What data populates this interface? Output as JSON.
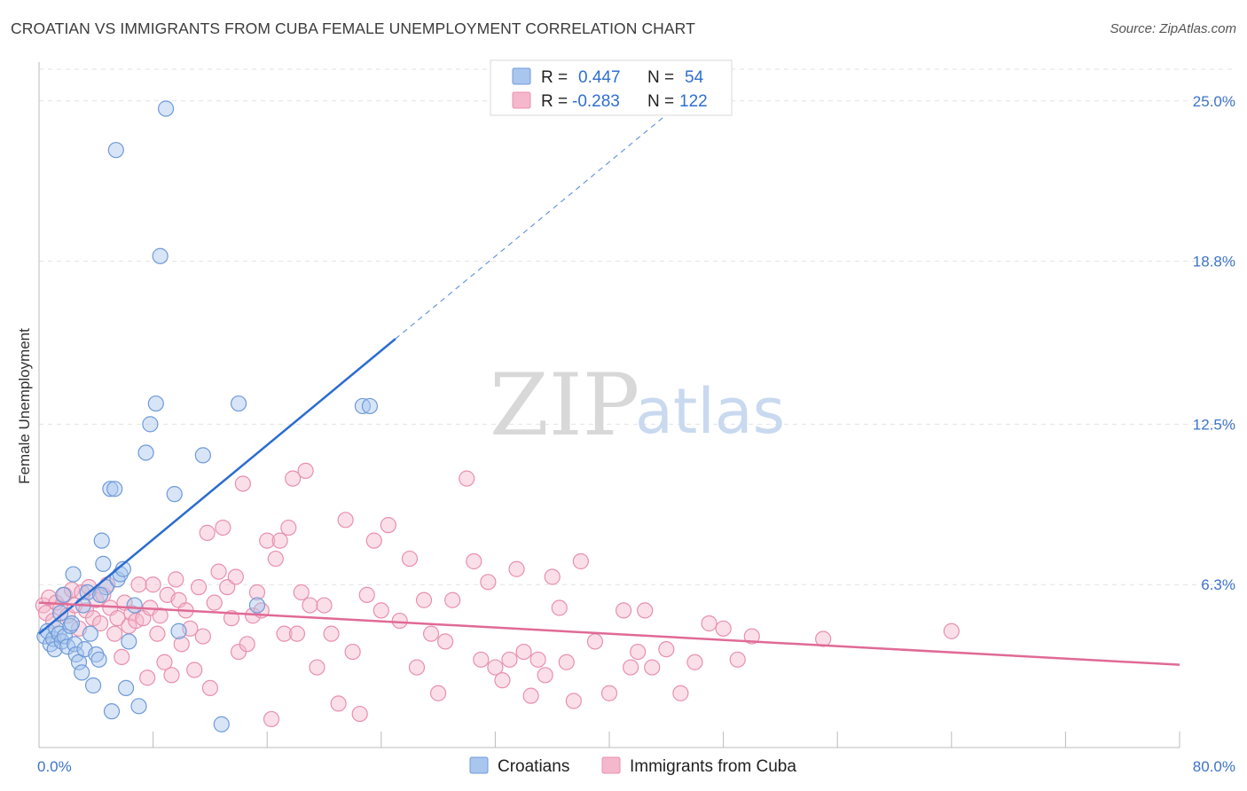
{
  "chart_data": {
    "type": "scatter",
    "title": "CROATIAN VS IMMIGRANTS FROM CUBA FEMALE UNEMPLOYMENT CORRELATION CHART",
    "source": "Source: ZipAtlas.com",
    "ylabel": "Female Unemployment",
    "xlabel": "",
    "xlim": [
      0,
      80
    ],
    "ylim": [
      0,
      26.5
    ],
    "x_ticks": [
      {
        "value": 0,
        "label": "0.0%"
      },
      {
        "value": 80,
        "label": "80.0%"
      }
    ],
    "y_ticks": [
      {
        "value": 6.3,
        "label": "6.3%"
      },
      {
        "value": 12.5,
        "label": "12.5%"
      },
      {
        "value": 18.8,
        "label": "18.8%"
      },
      {
        "value": 25.0,
        "label": "25.0%"
      }
    ],
    "watermark": {
      "part1": "ZIP",
      "part2": "atlas"
    },
    "legend": {
      "r_label": "R =",
      "n_label": "N =",
      "entries": [
        {
          "name": "Croatians",
          "r": "0.447",
          "n": "54"
        },
        {
          "name": "Immigrants from Cuba",
          "r": "-0.283",
          "n": "122"
        }
      ]
    },
    "colors": {
      "blue_fill": "#a9c6ee",
      "blue_stroke": "#6f9ad8",
      "blue_line": "#2a6ccf",
      "pink_fill": "#f5b7cb",
      "pink_stroke": "#e890ad",
      "pink_line": "#e06a95",
      "grid": "#e2e2e2",
      "tick": "#3d73c8"
    },
    "series": [
      {
        "name": "Croatians",
        "trend": {
          "x0": 0,
          "y0": 4.4,
          "x1": 25,
          "y1": 15.8,
          "dash_to_x": 80
        },
        "points": [
          [
            0.4,
            4.3
          ],
          [
            0.6,
            4.5
          ],
          [
            0.8,
            4.0
          ],
          [
            1.0,
            4.2
          ],
          [
            1.1,
            3.8
          ],
          [
            1.2,
            4.6
          ],
          [
            1.4,
            4.4
          ],
          [
            1.5,
            5.2
          ],
          [
            1.6,
            4.1
          ],
          [
            1.8,
            4.3
          ],
          [
            2.0,
            3.9
          ],
          [
            2.2,
            4.7
          ],
          [
            2.4,
            6.7
          ],
          [
            2.5,
            4.0
          ],
          [
            2.6,
            3.6
          ],
          [
            2.8,
            3.3
          ],
          [
            3.0,
            2.9
          ],
          [
            3.2,
            3.8
          ],
          [
            3.4,
            6.0
          ],
          [
            3.6,
            4.4
          ],
          [
            3.8,
            2.4
          ],
          [
            4.0,
            3.6
          ],
          [
            4.2,
            3.4
          ],
          [
            4.4,
            8.0
          ],
          [
            4.5,
            7.1
          ],
          [
            4.7,
            6.2
          ],
          [
            5.0,
            10.0
          ],
          [
            5.1,
            1.4
          ],
          [
            5.3,
            10.0
          ],
          [
            5.5,
            6.5
          ],
          [
            5.7,
            6.7
          ],
          [
            5.9,
            6.9
          ],
          [
            6.1,
            2.3
          ],
          [
            6.3,
            4.1
          ],
          [
            6.7,
            5.5
          ],
          [
            7.0,
            1.6
          ],
          [
            7.5,
            11.4
          ],
          [
            7.8,
            12.5
          ],
          [
            8.2,
            13.3
          ],
          [
            8.5,
            19.0
          ],
          [
            8.9,
            24.7
          ],
          [
            9.5,
            9.8
          ],
          [
            9.8,
            4.5
          ],
          [
            11.5,
            11.3
          ],
          [
            12.8,
            0.9
          ],
          [
            14.0,
            13.3
          ],
          [
            15.3,
            5.5
          ],
          [
            22.7,
            13.2
          ],
          [
            23.2,
            13.2
          ],
          [
            5.4,
            23.1
          ],
          [
            4.3,
            5.9
          ],
          [
            2.3,
            4.8
          ],
          [
            3.1,
            5.5
          ],
          [
            1.7,
            5.9
          ]
        ]
      },
      {
        "name": "Immigrants from Cuba",
        "trend": {
          "x0": 0,
          "y0": 5.6,
          "x1": 80,
          "y1": 3.2
        },
        "points": [
          [
            0.3,
            5.5
          ],
          [
            0.5,
            5.2
          ],
          [
            0.7,
            5.8
          ],
          [
            1.0,
            4.9
          ],
          [
            1.2,
            5.6
          ],
          [
            1.5,
            5.4
          ],
          [
            1.8,
            5.9
          ],
          [
            2.0,
            5.1
          ],
          [
            2.3,
            6.1
          ],
          [
            2.5,
            5.5
          ],
          [
            2.8,
            4.6
          ],
          [
            3.0,
            6.0
          ],
          [
            3.3,
            5.3
          ],
          [
            3.5,
            6.2
          ],
          [
            3.8,
            5.0
          ],
          [
            4.0,
            5.7
          ],
          [
            4.3,
            4.8
          ],
          [
            4.5,
            5.9
          ],
          [
            4.8,
            6.3
          ],
          [
            5.0,
            5.4
          ],
          [
            5.3,
            4.4
          ],
          [
            5.5,
            5.0
          ],
          [
            5.8,
            3.5
          ],
          [
            6.0,
            5.6
          ],
          [
            6.3,
            4.7
          ],
          [
            6.5,
            5.2
          ],
          [
            6.8,
            4.9
          ],
          [
            7.0,
            6.3
          ],
          [
            7.3,
            5.0
          ],
          [
            7.6,
            2.7
          ],
          [
            7.8,
            5.4
          ],
          [
            8.0,
            6.3
          ],
          [
            8.3,
            4.4
          ],
          [
            8.5,
            5.1
          ],
          [
            8.8,
            3.3
          ],
          [
            9.0,
            5.9
          ],
          [
            9.3,
            2.8
          ],
          [
            9.6,
            6.5
          ],
          [
            9.8,
            5.7
          ],
          [
            10.0,
            4.0
          ],
          [
            10.3,
            5.3
          ],
          [
            10.6,
            4.6
          ],
          [
            10.9,
            3.0
          ],
          [
            11.2,
            6.2
          ],
          [
            11.5,
            4.3
          ],
          [
            11.8,
            8.3
          ],
          [
            12.0,
            2.3
          ],
          [
            12.3,
            5.6
          ],
          [
            12.6,
            6.8
          ],
          [
            12.9,
            8.5
          ],
          [
            13.2,
            6.2
          ],
          [
            13.5,
            5.0
          ],
          [
            13.8,
            6.6
          ],
          [
            14.0,
            3.7
          ],
          [
            14.3,
            10.2
          ],
          [
            14.6,
            4.0
          ],
          [
            15.0,
            5.1
          ],
          [
            15.3,
            6.0
          ],
          [
            15.6,
            5.3
          ],
          [
            16.0,
            8.0
          ],
          [
            16.3,
            1.1
          ],
          [
            16.6,
            7.3
          ],
          [
            16.9,
            8.0
          ],
          [
            17.2,
            4.4
          ],
          [
            17.5,
            8.5
          ],
          [
            17.8,
            10.4
          ],
          [
            18.1,
            4.4
          ],
          [
            18.4,
            6.0
          ],
          [
            18.7,
            10.7
          ],
          [
            19.0,
            5.5
          ],
          [
            19.5,
            3.1
          ],
          [
            20.0,
            5.5
          ],
          [
            20.5,
            4.4
          ],
          [
            21.0,
            1.7
          ],
          [
            21.5,
            8.8
          ],
          [
            22.0,
            3.7
          ],
          [
            22.5,
            1.3
          ],
          [
            23.0,
            5.9
          ],
          [
            23.5,
            8.0
          ],
          [
            24.0,
            5.3
          ],
          [
            24.5,
            8.6
          ],
          [
            25.3,
            4.9
          ],
          [
            26.0,
            7.3
          ],
          [
            26.5,
            3.1
          ],
          [
            27.0,
            5.7
          ],
          [
            27.5,
            4.4
          ],
          [
            28.0,
            2.1
          ],
          [
            28.5,
            4.1
          ],
          [
            29.0,
            5.7
          ],
          [
            30.0,
            10.4
          ],
          [
            30.5,
            7.2
          ],
          [
            31.0,
            3.4
          ],
          [
            31.5,
            6.4
          ],
          [
            32.0,
            3.1
          ],
          [
            32.5,
            2.6
          ],
          [
            33.0,
            3.4
          ],
          [
            33.5,
            6.9
          ],
          [
            34.0,
            3.7
          ],
          [
            34.5,
            2.0
          ],
          [
            35.0,
            3.4
          ],
          [
            35.5,
            2.8
          ],
          [
            36.0,
            6.6
          ],
          [
            36.5,
            5.4
          ],
          [
            37.0,
            3.3
          ],
          [
            37.5,
            1.8
          ],
          [
            38.0,
            7.2
          ],
          [
            39.0,
            4.1
          ],
          [
            40.0,
            2.1
          ],
          [
            41.0,
            5.3
          ],
          [
            41.5,
            3.1
          ],
          [
            42.0,
            3.7
          ],
          [
            42.5,
            5.3
          ],
          [
            43.0,
            3.1
          ],
          [
            44.0,
            3.8
          ],
          [
            45.0,
            2.1
          ],
          [
            46.0,
            3.3
          ],
          [
            47.0,
            4.8
          ],
          [
            48.0,
            4.6
          ],
          [
            49.0,
            3.4
          ],
          [
            50.0,
            4.3
          ],
          [
            55.0,
            4.2
          ],
          [
            64.0,
            4.5
          ]
        ]
      }
    ]
  }
}
